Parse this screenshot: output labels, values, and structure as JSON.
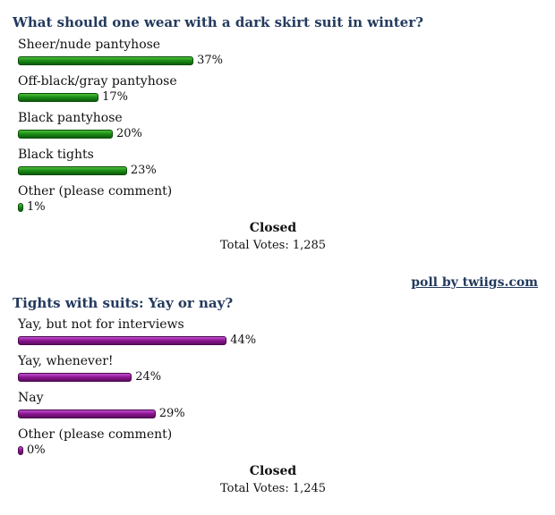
{
  "poll1": {
    "question": "What should one wear with a dark skirt suit in winter?",
    "bar_color": "#1a8a16",
    "answers": [
      {
        "label": "Sheer/nude pantyhose",
        "percent": 37,
        "percent_text": "37%"
      },
      {
        "label": "Off-black/gray pantyhose",
        "percent": 17,
        "percent_text": "17%"
      },
      {
        "label": "Black pantyhose",
        "percent": 20,
        "percent_text": "20%"
      },
      {
        "label": "Black tights",
        "percent": 23,
        "percent_text": "23%"
      },
      {
        "label": "Other (please comment)",
        "percent": 1,
        "percent_text": "1%"
      }
    ],
    "status": "Closed",
    "total_votes": "Total Votes: 1,285"
  },
  "credit": "poll by twiigs.com",
  "poll2": {
    "question": "Tights with suits: Yay or nay?",
    "bar_color": "#8a158f",
    "answers": [
      {
        "label": "Yay, but not for interviews",
        "percent": 44,
        "percent_text": "44%"
      },
      {
        "label": "Yay, whenever!",
        "percent": 24,
        "percent_text": "24%"
      },
      {
        "label": "Nay",
        "percent": 29,
        "percent_text": "29%"
      },
      {
        "label": "Other (please comment)",
        "percent": 0,
        "percent_text": "0%"
      }
    ],
    "status": "Closed",
    "total_votes": "Total Votes: 1,245"
  }
}
